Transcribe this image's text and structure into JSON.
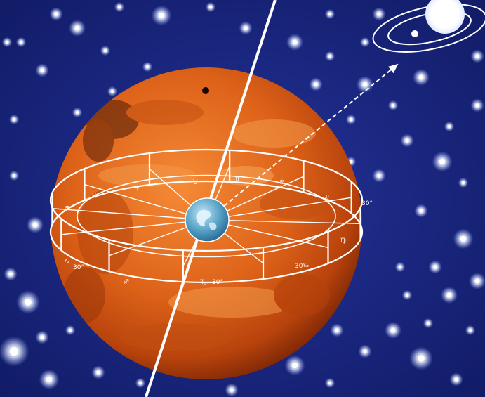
{
  "scene": {
    "colors": {
      "space": "#1d2a86",
      "space_edge": "#0d1557",
      "planet_light": "#f07a2a",
      "planet_mid": "#d85a14",
      "planet_dark": "#8a2a08",
      "earth": "#5aa3c8",
      "lines": "#ffffff"
    },
    "icons": {
      "sun": "sun-icon",
      "earth": "earth-globe-icon",
      "orbit": "orbit-icon"
    }
  },
  "zodiac": {
    "labels": [
      "♉",
      "♊",
      "♋",
      "♌",
      "♍",
      "♎",
      "♏",
      "♐",
      "♑",
      "♒",
      "♓",
      "♈",
      "30°",
      "30°",
      "30°",
      "30°"
    ]
  }
}
